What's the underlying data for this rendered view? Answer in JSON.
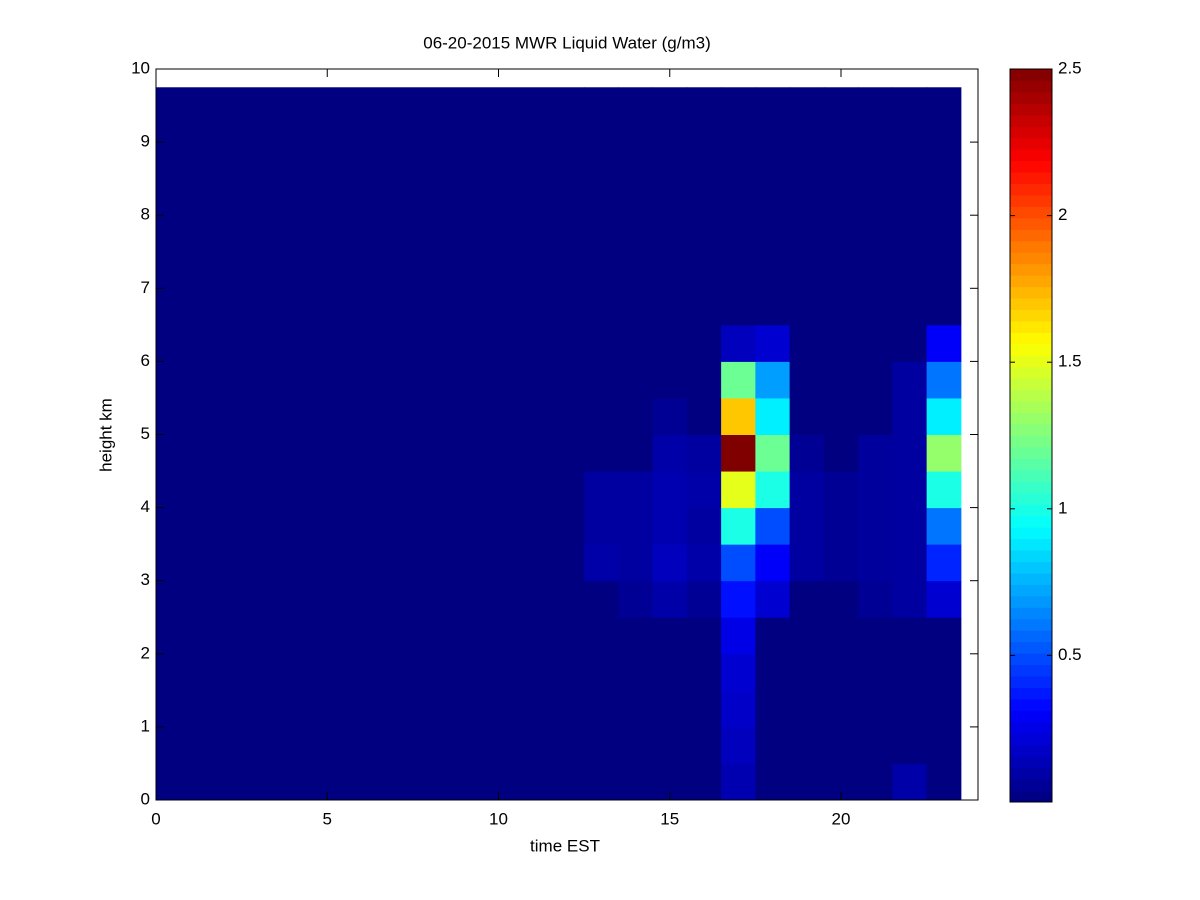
{
  "chart_data": {
    "type": "heatmap",
    "title": "06-20-2015 MWR Liquid Water (g/m3)",
    "x_label": "time EST",
    "y_label": "height km",
    "colormap": "jet",
    "x_edges": [
      0,
      12.5,
      13.5,
      14.5,
      15.5,
      16.5,
      17.5,
      18.5,
      19.5,
      20.5,
      21.5,
      22.5,
      23.5
    ],
    "y_edges": [
      0,
      0.5,
      1,
      1.5,
      2,
      2.5,
      3,
      3.5,
      4,
      4.5,
      5,
      5.5,
      6,
      6.5,
      7,
      7.5,
      8,
      8.5,
      9,
      9.5,
      9.75
    ],
    "values": [
      [
        0,
        0,
        0,
        0,
        0,
        0,
        0,
        0,
        0,
        0,
        0,
        0,
        0,
        0,
        0,
        0,
        0,
        0,
        0,
        0
      ],
      [
        0,
        0,
        0,
        0,
        0,
        0,
        0.1,
        0.08,
        0.08,
        0,
        0,
        0,
        0,
        0,
        0,
        0,
        0,
        0,
        0,
        0
      ],
      [
        0,
        0,
        0,
        0,
        0,
        0.05,
        0.08,
        0.08,
        0.08,
        0,
        0,
        0,
        0,
        0,
        0,
        0,
        0,
        0,
        0,
        0
      ],
      [
        0,
        0,
        0,
        0,
        0,
        0.1,
        0.15,
        0.12,
        0.12,
        0.1,
        0.05,
        0,
        0,
        0,
        0,
        0,
        0,
        0,
        0,
        0
      ],
      [
        0,
        0,
        0,
        0,
        0,
        0.05,
        0.1,
        0.08,
        0.1,
        0.08,
        0,
        0,
        0,
        0,
        0,
        0,
        0,
        0,
        0,
        0
      ],
      [
        0.12,
        0.15,
        0.18,
        0.2,
        0.25,
        0.35,
        0.5,
        1.0,
        1.5,
        2.5,
        1.7,
        1.2,
        0.15,
        0,
        0,
        0,
        0,
        0,
        0,
        0
      ],
      [
        0,
        0,
        0,
        0,
        0,
        0.2,
        0.3,
        0.5,
        1.0,
        1.2,
        0.9,
        0.7,
        0.2,
        0,
        0,
        0,
        0,
        0,
        0,
        0
      ],
      [
        0,
        0,
        0,
        0,
        0,
        0,
        0.08,
        0.08,
        0.08,
        0.05,
        0,
        0,
        0,
        0,
        0,
        0,
        0,
        0,
        0,
        0
      ],
      [
        0,
        0,
        0,
        0,
        0,
        0,
        0.05,
        0.05,
        0.05,
        0,
        0,
        0,
        0,
        0,
        0,
        0,
        0,
        0,
        0,
        0
      ],
      [
        0,
        0,
        0,
        0,
        0,
        0.05,
        0.07,
        0.07,
        0.07,
        0.07,
        0,
        0,
        0,
        0,
        0,
        0,
        0,
        0,
        0,
        0
      ],
      [
        0.1,
        0,
        0,
        0,
        0,
        0.08,
        0.08,
        0.08,
        0.08,
        0.08,
        0.08,
        0.08,
        0,
        0,
        0,
        0,
        0,
        0,
        0,
        0
      ],
      [
        0,
        0,
        0,
        0,
        0,
        0.2,
        0.4,
        0.6,
        1.0,
        1.3,
        0.9,
        0.6,
        0.3,
        0,
        0,
        0,
        0,
        0,
        0,
        0
      ]
    ],
    "xlim": [
      0,
      24
    ],
    "xticks": [
      0,
      5,
      10,
      15,
      20
    ],
    "ylim": [
      0,
      10
    ],
    "yticks": [
      0,
      1,
      2,
      3,
      4,
      5,
      6,
      7,
      8,
      9,
      10
    ],
    "clim": [
      0,
      2.5
    ],
    "cticks": [
      0.5,
      1,
      1.5,
      2,
      2.5
    ]
  }
}
